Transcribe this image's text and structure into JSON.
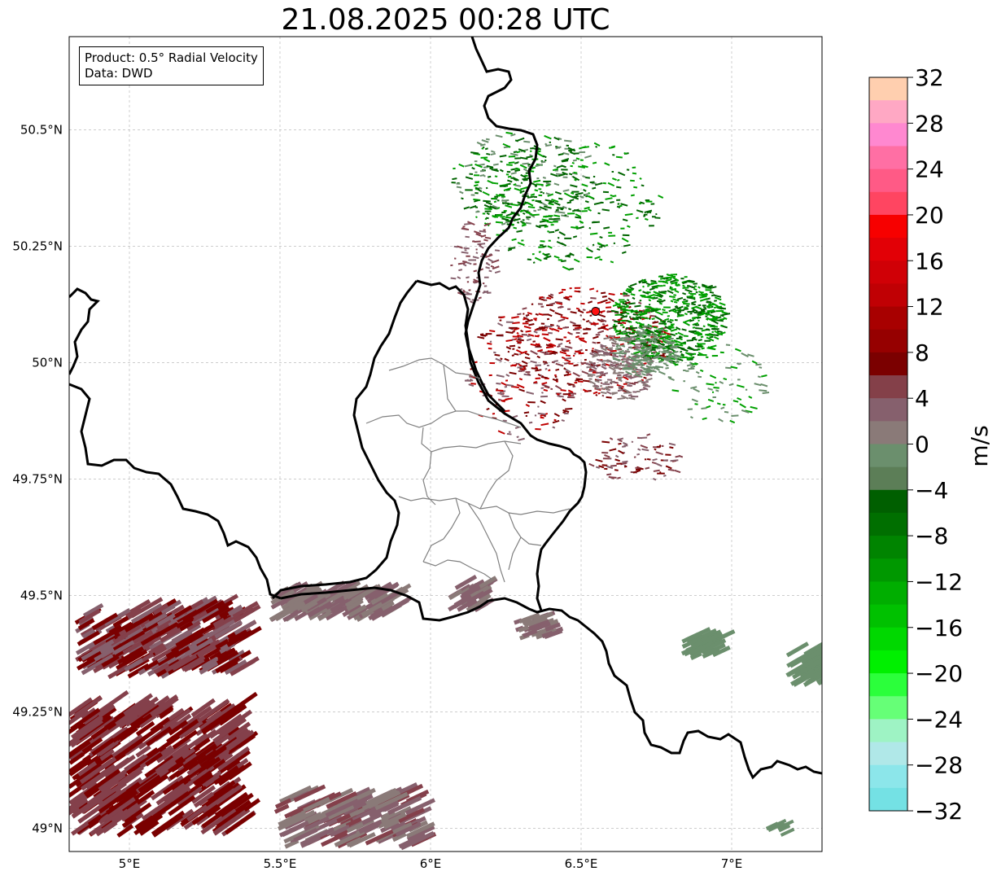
{
  "title": "21.08.2025 00:28 UTC",
  "info": {
    "line1": "Product: 0.5° Radial Velocity",
    "line2": "Data: DWD"
  },
  "map": {
    "lon_range": [
      4.8,
      7.3
    ],
    "lat_range": [
      48.95,
      50.7
    ],
    "lon_ticks": [
      {
        "value": 5.0,
        "label": "5°E"
      },
      {
        "value": 5.5,
        "label": "5.5°E"
      },
      {
        "value": 6.0,
        "label": "6°E"
      },
      {
        "value": 6.5,
        "label": "6.5°E"
      },
      {
        "value": 7.0,
        "label": "7°E"
      }
    ],
    "lat_ticks": [
      {
        "value": 49.0,
        "label": "49°N"
      },
      {
        "value": 49.25,
        "label": "49.25°N"
      },
      {
        "value": 49.5,
        "label": "49.5°N"
      },
      {
        "value": 49.75,
        "label": "49.75°N"
      },
      {
        "value": 50.0,
        "label": "50°N"
      },
      {
        "value": 50.25,
        "label": "50.25°N"
      },
      {
        "value": 50.5,
        "label": "50.5°N"
      }
    ],
    "radar_site": {
      "lon": 6.548,
      "lat": 50.11
    },
    "grid": true
  },
  "colorbar": {
    "unit": "m/s",
    "min": -32,
    "max": 32,
    "tick_labels": [
      "32",
      "28",
      "24",
      "20",
      "16",
      "12",
      "8",
      "4",
      "0",
      "−4",
      "−8",
      "−12",
      "−16",
      "−20",
      "−24",
      "−28",
      "−32"
    ],
    "tick_values": [
      32,
      28,
      24,
      20,
      16,
      12,
      8,
      4,
      0,
      -4,
      -8,
      -12,
      -16,
      -20,
      -24,
      -28,
      -32
    ],
    "colors_top_to_bottom": [
      "#ffcfaf",
      "#ffa8c4",
      "#ff88d0",
      "#ff6fa4",
      "#ff5a86",
      "#ff4561",
      "#f70000",
      "#e20006",
      "#d00006",
      "#c00004",
      "#a80000",
      "#960000",
      "#7b0000",
      "#844049",
      "#86606d",
      "#8a7a78",
      "#6b8f6d",
      "#5c7e57",
      "#005f00",
      "#006f00",
      "#008400",
      "#009800",
      "#00ae00",
      "#00c100",
      "#00d800",
      "#00f000",
      "#2bff3b",
      "#66ff77",
      "#9ef3c4",
      "#b0e8e8",
      "#8ce6ea",
      "#74e1e4"
    ]
  },
  "precip_colors": {
    "dark_red": "#7a0000",
    "brownish_red": "#84404b",
    "mauve": "#86606d",
    "gray_pink": "#8a7a78",
    "gray_green": "#6b8f6d",
    "green": "#00a000",
    "dark_green": "#006400",
    "red": "#c00000"
  }
}
